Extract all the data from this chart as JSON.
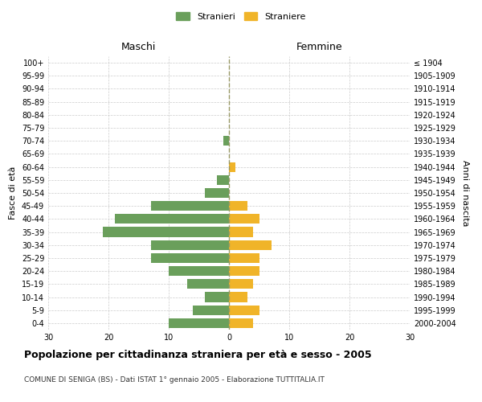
{
  "age_groups": [
    "0-4",
    "5-9",
    "10-14",
    "15-19",
    "20-24",
    "25-29",
    "30-34",
    "35-39",
    "40-44",
    "45-49",
    "50-54",
    "55-59",
    "60-64",
    "65-69",
    "70-74",
    "75-79",
    "80-84",
    "85-89",
    "90-94",
    "95-99",
    "100+"
  ],
  "birth_years": [
    "2000-2004",
    "1995-1999",
    "1990-1994",
    "1985-1989",
    "1980-1984",
    "1975-1979",
    "1970-1974",
    "1965-1969",
    "1960-1964",
    "1955-1959",
    "1950-1954",
    "1945-1949",
    "1940-1944",
    "1935-1939",
    "1930-1934",
    "1925-1929",
    "1920-1924",
    "1915-1919",
    "1910-1914",
    "1905-1909",
    "≤ 1904"
  ],
  "maschi": [
    10,
    6,
    4,
    7,
    10,
    13,
    13,
    21,
    19,
    13,
    4,
    2,
    0,
    0,
    1,
    0,
    0,
    0,
    0,
    0,
    0
  ],
  "femmine": [
    4,
    5,
    3,
    4,
    5,
    5,
    7,
    4,
    5,
    3,
    0,
    0,
    1,
    0,
    0,
    0,
    0,
    0,
    0,
    0,
    0
  ],
  "maschi_color": "#6a9f5b",
  "femmine_color": "#f0b429",
  "title": "Popolazione per cittadinanza straniera per età e sesso - 2005",
  "subtitle": "COMUNE DI SENIGA (BS) - Dati ISTAT 1° gennaio 2005 - Elaborazione TUTTITALIA.IT",
  "ylabel_left": "Fasce di età",
  "ylabel_right": "Anni di nascita",
  "xlabel_left": "Maschi",
  "xlabel_top_right": "Femmine",
  "legend_maschi": "Stranieri",
  "legend_femmine": "Straniere",
  "xlim": 30,
  "background_color": "#ffffff",
  "grid_color": "#cccccc"
}
